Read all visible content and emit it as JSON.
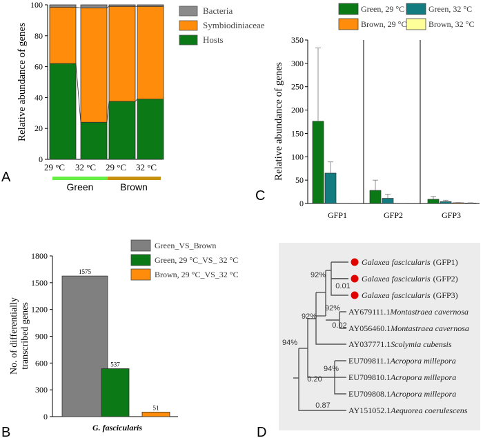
{
  "panel_labels": {
    "a": "A",
    "b": "B",
    "c": "C",
    "d": "D"
  },
  "chart_data": [
    {
      "panel": "A",
      "type": "bar",
      "stacked": true,
      "ylabel": "Relative abundance of genes",
      "ylim": [
        0,
        100
      ],
      "yticks": [
        "0",
        "20",
        "40",
        "60",
        "80",
        "100"
      ],
      "categories": [
        "29 °C",
        "32 °C",
        "29 °C",
        "32 °C"
      ],
      "groups": [
        {
          "label": "Green",
          "color": "#66ee44"
        },
        {
          "label": "Brown",
          "color": "#c8900f"
        }
      ],
      "series": [
        {
          "name": "Hosts",
          "color": "#0b7a16",
          "values": [
            62,
            24,
            37.5,
            39
          ]
        },
        {
          "name": "Symbiodiniaceae",
          "color": "#ff8c0a",
          "values": [
            36.5,
            74,
            61.5,
            60
          ]
        },
        {
          "name": "Bacteria",
          "color": "#8a8a8a",
          "values": [
            1.5,
            2,
            1,
            1
          ]
        }
      ],
      "legend_position": "right"
    },
    {
      "panel": "B",
      "type": "bar",
      "ylabel": "No. of differentially transcribed genes",
      "ylabel_lines": [
        "No. of differentially",
        "transcribed genes"
      ],
      "xlabel": "G. fascicularis",
      "ylim": [
        0,
        1800
      ],
      "yticks": [
        "0",
        "300",
        "600",
        "900",
        "1200",
        "1500",
        "1800"
      ],
      "series": [
        {
          "name": "Green_VS_Brown",
          "color": "#808080",
          "value": 1575,
          "label": "1575"
        },
        {
          "name": "Green, 29 °C_VS_ 32 °C",
          "color": "#0b7a16",
          "value": 537,
          "label": "537"
        },
        {
          "name": "Brown, 29 °C_VS_32 °C",
          "color": "#ff8c0a",
          "value": 51,
          "label": "51"
        }
      ],
      "legend_position": "top-right"
    },
    {
      "panel": "C",
      "type": "bar",
      "ylabel": "Relative abundance of genes",
      "ylim": [
        0,
        350
      ],
      "yticks": [
        "0",
        "50",
        "100",
        "150",
        "200",
        "250",
        "300",
        "350"
      ],
      "categories": [
        "GFP1",
        "GFP2",
        "GFP3"
      ],
      "series": [
        {
          "name": "Green, 29 °C",
          "color": "#0b7a16",
          "values": [
            176,
            28,
            9
          ],
          "errors": [
            157,
            22,
            6
          ]
        },
        {
          "name": "Green, 32 °C",
          "color": "#137c80",
          "values": [
            65,
            11,
            4
          ],
          "errors": [
            24,
            9,
            3
          ]
        },
        {
          "name": "Brown, 29 °C",
          "color": "#ff8c0a",
          "values": [
            0.5,
            0.3,
            1.5
          ],
          "errors": [
            0,
            0,
            0.5
          ]
        },
        {
          "name": "Brown, 32 °C",
          "color": "#ffff99",
          "values": [
            0.3,
            0.2,
            1
          ],
          "errors": [
            0,
            0,
            0.5
          ]
        }
      ],
      "legend_position": "top"
    }
  ],
  "tree": {
    "leaves": [
      {
        "species": "Galaxea fascicularis",
        "suffix": "(GFP1)",
        "marked": true
      },
      {
        "species": "Galaxea fascicularis",
        "suffix": "(GFP2)",
        "marked": true
      },
      {
        "species": "Galaxea fascicularis",
        "suffix": "(GFP3)",
        "marked": true
      },
      {
        "accession": "AY679111.1",
        "species": "Montastraea cavernosa",
        "marked": false
      },
      {
        "accession": "AY056460.1",
        "species": "Montastraea cavernosa",
        "marked": false
      },
      {
        "accession": "AY037771.1",
        "species": "Scolymia cubensis",
        "marked": false
      },
      {
        "accession": "EU709811.1",
        "species": "Acropora millepora",
        "marked": false
      },
      {
        "accession": "EU709810.1",
        "species": "Acropora millepora",
        "marked": false
      },
      {
        "accession": "EU709808.1",
        "species": "Acropora millepora",
        "marked": false
      },
      {
        "accession": "AY151052.1",
        "species": "Aequorea coerulescens",
        "marked": false
      }
    ],
    "support": [
      "92%",
      "0.01",
      "92%",
      "0.02",
      "92%",
      "94%",
      "94%",
      "0.20",
      "0.87"
    ],
    "marker_color": "#e00000",
    "background": "#ececec"
  }
}
